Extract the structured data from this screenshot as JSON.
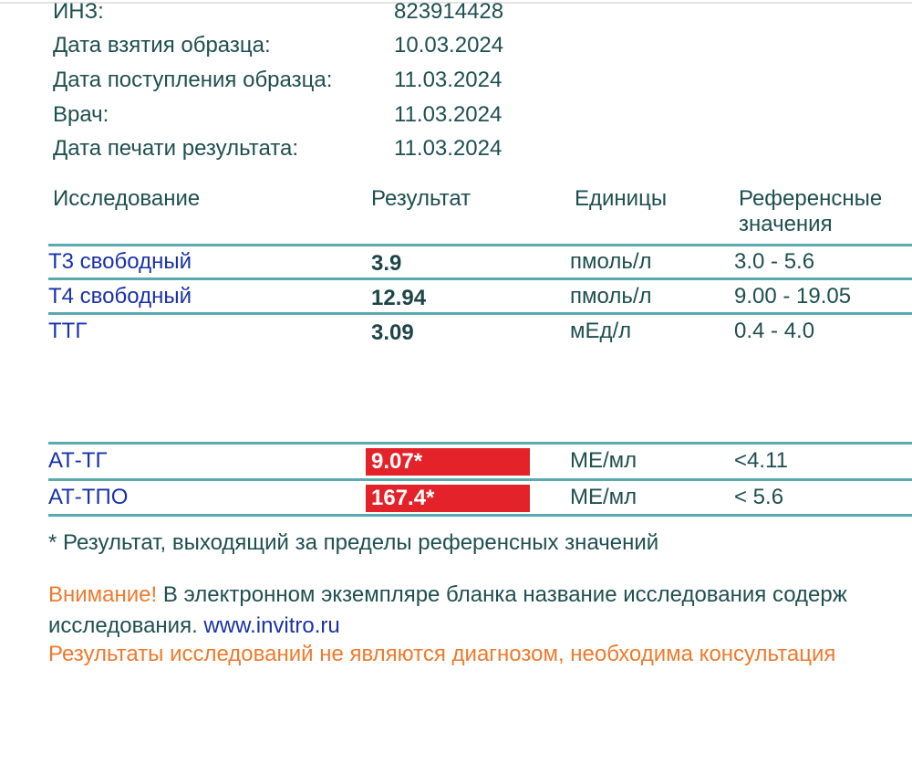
{
  "patient_info": [
    {
      "label": "ИНЗ:",
      "value": "823914428"
    },
    {
      "label": "Дата взятия образца:",
      "value": "10.03.2024"
    },
    {
      "label": "Дата поступления образца:",
      "value": "11.03.2024"
    },
    {
      "label": "Врач:",
      "value": "11.03.2024"
    },
    {
      "label": "Дата печати результата:",
      "value": "11.03.2024"
    }
  ],
  "table": {
    "headers": {
      "test": "Исследование",
      "result": "Результат",
      "units": "Единицы",
      "reference_line1": "Референсные",
      "reference_line2": "значения"
    },
    "rows": [
      {
        "test": "Т3 свободный",
        "result": "3.9",
        "units": "пмоль/л",
        "reference": "3.0 - 5.6",
        "out_of_range": false
      },
      {
        "test": "Т4 свободный",
        "result": "12.94",
        "units": "пмоль/л",
        "reference": "9.00 - 19.05",
        "out_of_range": false
      },
      {
        "test": "ТТГ",
        "result": "3.09",
        "units": "мЕд/л",
        "reference": "0.4 - 4.0",
        "out_of_range": false
      },
      {
        "test": "АТ-ТГ",
        "result": "9.07*",
        "units": "МЕ/мл",
        "reference": "<4.11",
        "out_of_range": true
      },
      {
        "test": "АТ-ТПО",
        "result": "167.4*",
        "units": "МЕ/мл",
        "reference": "< 5.6",
        "out_of_range": true
      }
    ]
  },
  "footnote": "* Результат, выходящий за пределы референсных значений",
  "notice": {
    "attention": "Внимание!",
    "text_line1": " В электронном экземпляре бланка название исследования содерж",
    "text_line2": "исследования. ",
    "link": "www.invitro.ru",
    "disclaimer": "Результаты исследований не являются диагнозом, необходима консультация"
  },
  "colors": {
    "text": "#1f4f50",
    "test_name": "#1a32a8",
    "rule": "#5aa9b0",
    "flag_bg": "#e4222a",
    "warning": "#ee7a2c"
  }
}
